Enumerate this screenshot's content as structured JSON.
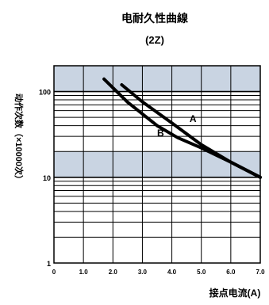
{
  "chart_data": {
    "type": "line",
    "title": "电耐久性曲線",
    "subtitle": "(2Z)",
    "xlabel": "接点电流(A)",
    "ylabel": "动作次数（×10000次）",
    "x_ticks": [
      "0",
      "1.0",
      "2.0",
      "3.0",
      "4.0",
      "5.0",
      "6.0",
      "7.0"
    ],
    "y_ticks": [
      "1",
      "10",
      "100"
    ],
    "x_range": [
      0,
      7
    ],
    "y_range": [
      1,
      200
    ],
    "y_scale": "log",
    "grid": true,
    "series": [
      {
        "name": "A",
        "x": [
          2.3,
          3.0,
          4.0,
          5.0,
          6.0,
          7.0
        ],
        "y": [
          120,
          76,
          43,
          24,
          15,
          10
        ]
      },
      {
        "name": "B",
        "x": [
          1.7,
          2.5,
          3.5,
          4.2,
          5.0,
          6.0,
          7.0
        ],
        "y": [
          140,
          75,
          40,
          29,
          22,
          15,
          10
        ]
      }
    ]
  }
}
